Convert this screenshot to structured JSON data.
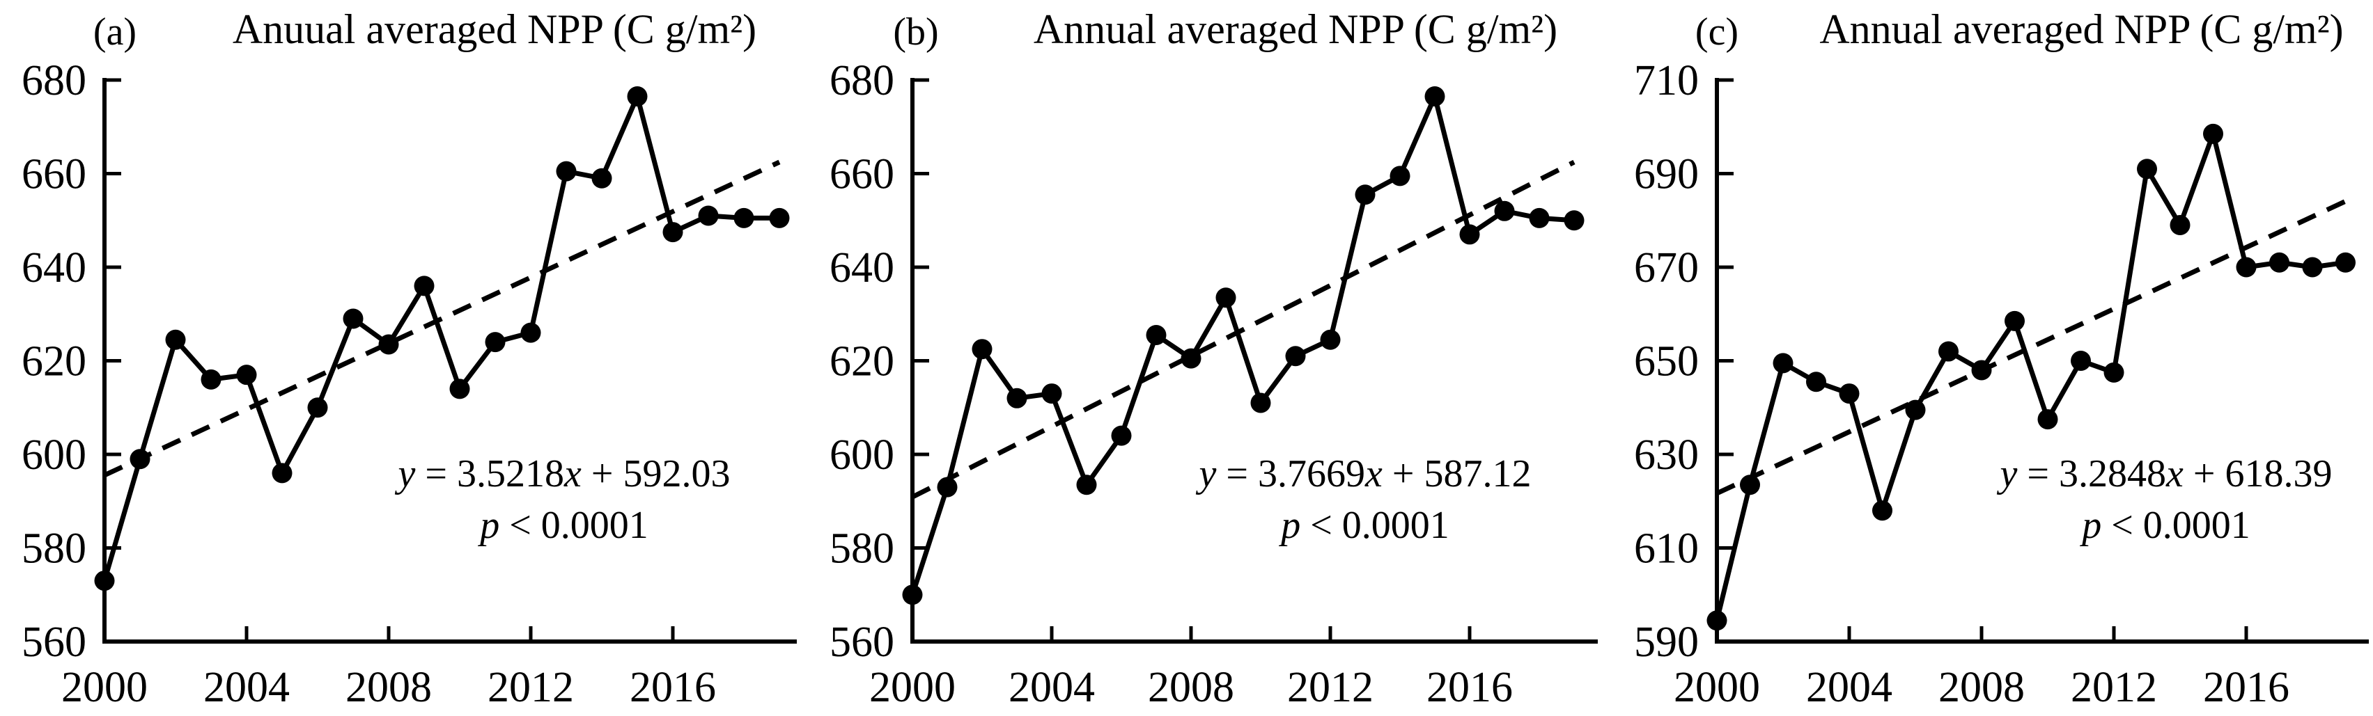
{
  "figure": {
    "background": "#ffffff",
    "ink_color": "#000000",
    "description_note": "",
    "panel_count": 3
  },
  "chart_data": [
    {
      "type": "line",
      "panel_label": "(a)",
      "title": "Anuual averaged NPP (C g/m²)",
      "years": [
        2000,
        2001,
        2002,
        2003,
        2004,
        2005,
        2006,
        2007,
        2008,
        2009,
        2010,
        2011,
        2012,
        2013,
        2014,
        2015,
        2016,
        2017,
        2018,
        2019
      ],
      "values": [
        573,
        599,
        624.5,
        616,
        617,
        596,
        610,
        629,
        623.5,
        636,
        614,
        624,
        626,
        660.5,
        659,
        676.5,
        647.5,
        651,
        650.5,
        650.5
      ],
      "trend": {
        "slope": 3.5218,
        "intercept": 592.03,
        "x_definition": "year index, 2000 = 1",
        "equation": "y = 3.5218x + 592.03",
        "p_value": "p < 0.0001",
        "equation_segments": [
          {
            "t": "y",
            "i": true
          },
          {
            "t": " = 3.5218",
            "i": false
          },
          {
            "t": "x",
            "i": true
          },
          {
            "t": " + 592.03",
            "i": false
          }
        ],
        "p_segments": [
          {
            "t": "p",
            "i": true
          },
          {
            "t": " < 0.0001",
            "i": false
          }
        ],
        "style": "dashed"
      },
      "ylim": [
        560,
        680
      ],
      "yticks": [
        560,
        580,
        600,
        620,
        640,
        660,
        680
      ],
      "xticks": [
        2000,
        2004,
        2008,
        2012,
        2016
      ],
      "xlim": [
        2000,
        2019.6
      ],
      "grid": false,
      "legend": "none",
      "marker": "filled-circle",
      "line_style": "solid"
    },
    {
      "type": "line",
      "panel_label": "(b)",
      "title": "Annual averaged NPP (C g/m²)",
      "years": [
        2000,
        2001,
        2002,
        2003,
        2004,
        2005,
        2006,
        2007,
        2008,
        2009,
        2010,
        2011,
        2012,
        2013,
        2014,
        2015,
        2016,
        2017,
        2018,
        2019
      ],
      "values": [
        570,
        593,
        622.5,
        612,
        613,
        593.5,
        604,
        625.5,
        620.5,
        633.5,
        611,
        621,
        624.5,
        655.5,
        659.5,
        676.5,
        647,
        652,
        650.5,
        650
      ],
      "trend": {
        "slope": 3.7669,
        "intercept": 587.12,
        "x_definition": "year index, 2000 = 1",
        "equation": "y = 3.7669x + 587.12",
        "p_value": "p < 0.0001",
        "equation_segments": [
          {
            "t": "y",
            "i": true
          },
          {
            "t": " = 3.7669",
            "i": false
          },
          {
            "t": "x",
            "i": true
          },
          {
            "t": " + 587.12",
            "i": false
          }
        ],
        "p_segments": [
          {
            "t": "p",
            "i": true
          },
          {
            "t": " < 0.0001",
            "i": false
          }
        ],
        "style": "dashed"
      },
      "ylim": [
        560,
        680
      ],
      "yticks": [
        560,
        580,
        600,
        620,
        640,
        660,
        680
      ],
      "xticks": [
        2000,
        2004,
        2008,
        2012,
        2016
      ],
      "xlim": [
        2000,
        2019.6
      ],
      "grid": false,
      "legend": "none",
      "marker": "filled-circle",
      "line_style": "solid"
    },
    {
      "type": "line",
      "panel_label": "(c)",
      "title": "Annual averaged NPP (C g/m²)",
      "years": [
        2000,
        2001,
        2002,
        2003,
        2004,
        2005,
        2006,
        2007,
        2008,
        2009,
        2010,
        2011,
        2012,
        2013,
        2014,
        2015,
        2016,
        2017,
        2018,
        2019
      ],
      "values": [
        594.5,
        623.5,
        649.5,
        645.5,
        643,
        618,
        639.5,
        652,
        648,
        658.5,
        637.5,
        650,
        647.5,
        691,
        679,
        698.5,
        670,
        671,
        670,
        671
      ],
      "trend": {
        "slope": 3.2848,
        "intercept": 618.39,
        "x_definition": "year index, 2000 = 1",
        "equation": "y = 3.2848x + 618.39",
        "p_value": "p < 0.0001",
        "equation_segments": [
          {
            "t": "y",
            "i": true
          },
          {
            "t": " = 3.2848",
            "i": false
          },
          {
            "t": "x",
            "i": true
          },
          {
            "t": " + 618.39",
            "i": false
          }
        ],
        "p_segments": [
          {
            "t": "p",
            "i": true
          },
          {
            "t": " < 0.0001",
            "i": false
          }
        ],
        "style": "dashed"
      },
      "ylim": [
        590,
        710
      ],
      "yticks": [
        590,
        610,
        630,
        650,
        670,
        690,
        710
      ],
      "xticks": [
        2000,
        2004,
        2008,
        2012,
        2016
      ],
      "xlim": [
        2000,
        2019.6
      ],
      "grid": false,
      "legend": "none",
      "marker": "filled-circle",
      "line_style": "solid"
    }
  ]
}
